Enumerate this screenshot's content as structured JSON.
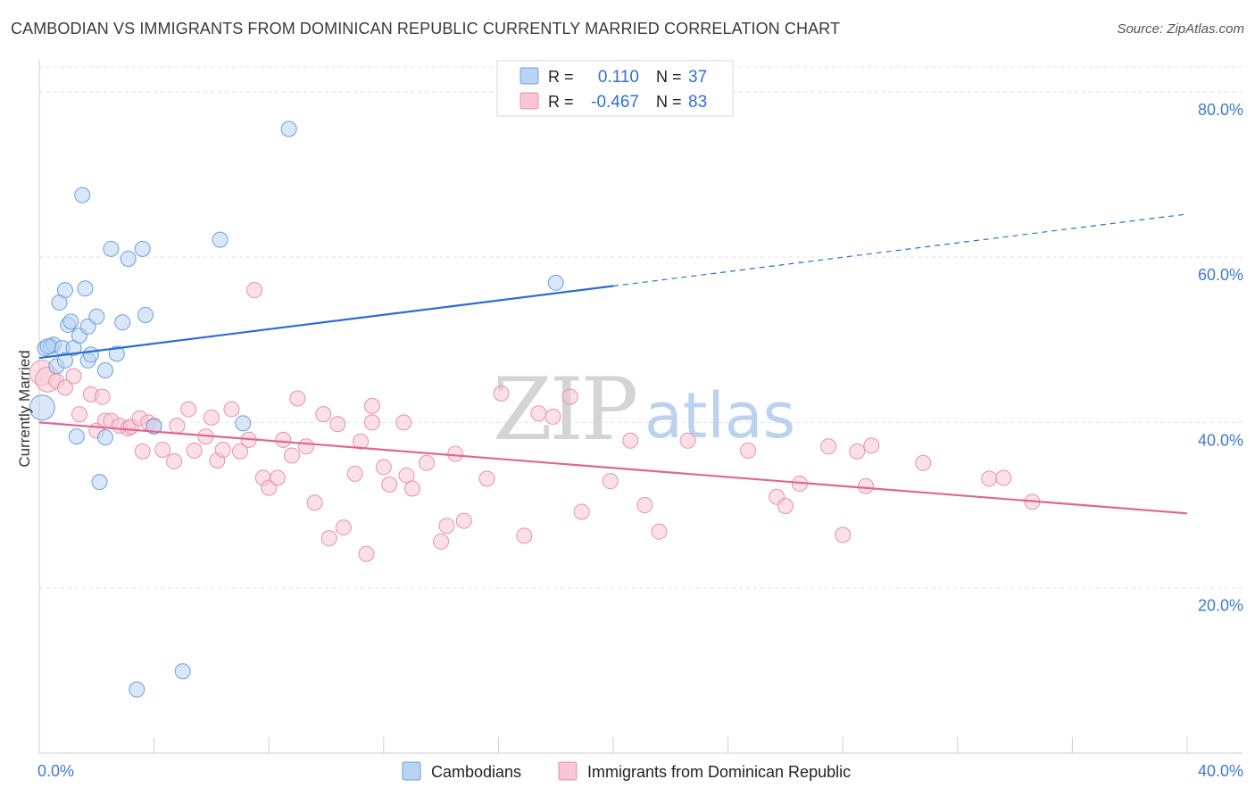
{
  "title": "CAMBODIAN VS IMMIGRANTS FROM DOMINICAN REPUBLIC CURRENTLY MARRIED CORRELATION CHART",
  "source": "Source: ZipAtlas.com",
  "watermark": {
    "zip": "ZIP",
    "atlas": "atlas"
  },
  "colors": {
    "blue_fill": "#b9d3f3",
    "blue_stroke": "#6b9fe0",
    "blue_line": "#2a6fcf",
    "pink_fill": "#f8c6d4",
    "pink_stroke": "#e990ad",
    "pink_line": "#e0668f",
    "grid": "#e3e3e3",
    "axis_text": "#3f7ad1"
  },
  "legend": {
    "rows": [
      {
        "r_label": "R =",
        "r_value": "0.110",
        "n_label": "N =",
        "n_value": "37"
      },
      {
        "r_label": "R =",
        "r_value": "-0.467",
        "n_label": "N =",
        "n_value": "83"
      }
    ]
  },
  "bottom_legend": [
    "Cambodians",
    "Immigrants from Dominican Republic"
  ],
  "chart_data": {
    "type": "scatter",
    "title": "CAMBODIAN VS IMMIGRANTS FROM DOMINICAN REPUBLIC CURRENTLY MARRIED CORRELATION CHART",
    "xlabel": "",
    "ylabel": "Currently Married",
    "xlim": [
      0,
      40
    ],
    "ylim": [
      0,
      83
    ],
    "x_tick_labels": [
      "0.0%",
      "40.0%"
    ],
    "y_ticks": [
      20,
      40,
      60,
      80
    ],
    "y_tick_labels": [
      "20.0%",
      "40.0%",
      "60.0%",
      "80.0%"
    ],
    "grid": true,
    "series": [
      {
        "name": "Cambodians",
        "r": 0.11,
        "n": 37,
        "trend": {
          "x0": 0,
          "y0": 47.8,
          "x1": 20,
          "y1": 56.5,
          "dash_to_x": 40,
          "dash_to_y": 65.2
        },
        "points": [
          [
            0.1,
            41.8,
            1
          ],
          [
            0.2,
            49.0,
            0
          ],
          [
            0.4,
            49.2,
            0
          ],
          [
            0.5,
            49.4,
            0
          ],
          [
            0.6,
            46.8,
            0
          ],
          [
            0.7,
            54.5,
            0
          ],
          [
            0.8,
            49.0,
            0
          ],
          [
            0.9,
            56.0,
            0
          ],
          [
            1.0,
            51.8,
            0
          ],
          [
            1.1,
            52.2,
            0
          ],
          [
            1.2,
            49.0,
            0
          ],
          [
            1.3,
            38.3,
            0
          ],
          [
            1.4,
            50.5,
            0
          ],
          [
            1.6,
            56.2,
            0
          ],
          [
            1.7,
            51.6,
            0
          ],
          [
            1.7,
            47.5,
            0
          ],
          [
            1.5,
            67.5,
            0
          ],
          [
            1.8,
            48.2,
            0
          ],
          [
            2.0,
            52.8,
            0
          ],
          [
            2.1,
            32.8,
            0
          ],
          [
            2.3,
            38.2,
            0
          ],
          [
            2.3,
            46.3,
            0
          ],
          [
            2.5,
            61.0,
            0
          ],
          [
            2.7,
            48.3,
            0
          ],
          [
            2.9,
            52.1,
            0
          ],
          [
            3.1,
            59.8,
            0
          ],
          [
            3.4,
            7.7,
            0
          ],
          [
            3.6,
            61.0,
            0
          ],
          [
            3.7,
            53.0,
            0
          ],
          [
            4.0,
            39.5,
            0
          ],
          [
            5.0,
            9.9,
            0
          ],
          [
            6.3,
            62.1,
            0
          ],
          [
            7.1,
            39.9,
            0
          ],
          [
            8.7,
            75.5,
            0
          ],
          [
            0.3,
            49.2,
            0
          ],
          [
            0.9,
            47.5,
            0
          ],
          [
            18.0,
            56.9,
            0
          ]
        ]
      },
      {
        "name": "Immigrants from Dominican Republic",
        "r": -0.467,
        "n": 83,
        "trend": {
          "x0": 0,
          "y0": 40.0,
          "x1": 40,
          "y1": 29.0
        },
        "points": [
          [
            0.1,
            46.0,
            1
          ],
          [
            0.3,
            45.2,
            1
          ],
          [
            0.6,
            45.0,
            0
          ],
          [
            0.9,
            44.2,
            0
          ],
          [
            1.2,
            45.6,
            0
          ],
          [
            1.4,
            41.0,
            0
          ],
          [
            1.8,
            43.4,
            0
          ],
          [
            2.0,
            39.0,
            0
          ],
          [
            2.2,
            43.1,
            0
          ],
          [
            2.3,
            40.2,
            0
          ],
          [
            2.5,
            40.2,
            0
          ],
          [
            2.8,
            39.6,
            0
          ],
          [
            3.1,
            39.3,
            0
          ],
          [
            3.2,
            39.5,
            0
          ],
          [
            3.5,
            40.5,
            0
          ],
          [
            3.6,
            36.5,
            0
          ],
          [
            3.8,
            40.0,
            0
          ],
          [
            4.0,
            39.6,
            0
          ],
          [
            4.3,
            36.7,
            0
          ],
          [
            4.7,
            35.3,
            0
          ],
          [
            4.8,
            39.6,
            0
          ],
          [
            5.2,
            41.6,
            0
          ],
          [
            5.4,
            36.6,
            0
          ],
          [
            5.8,
            38.3,
            0
          ],
          [
            6.0,
            40.6,
            0
          ],
          [
            6.2,
            35.4,
            0
          ],
          [
            6.4,
            36.7,
            0
          ],
          [
            6.7,
            41.6,
            0
          ],
          [
            7.0,
            36.5,
            0
          ],
          [
            7.3,
            37.9,
            0
          ],
          [
            7.5,
            56.0,
            0
          ],
          [
            7.8,
            33.3,
            0
          ],
          [
            8.0,
            32.1,
            0
          ],
          [
            8.3,
            33.3,
            0
          ],
          [
            8.5,
            37.9,
            0
          ],
          [
            8.8,
            36.0,
            0
          ],
          [
            9.0,
            42.9,
            0
          ],
          [
            9.3,
            37.1,
            0
          ],
          [
            9.6,
            30.3,
            0
          ],
          [
            9.9,
            41.0,
            0
          ],
          [
            10.1,
            26.0,
            0
          ],
          [
            10.4,
            39.8,
            0
          ],
          [
            10.6,
            27.3,
            0
          ],
          [
            11.0,
            33.8,
            0
          ],
          [
            11.2,
            37.7,
            0
          ],
          [
            11.4,
            24.1,
            0
          ],
          [
            11.6,
            42.0,
            0
          ],
          [
            11.6,
            40.0,
            0
          ],
          [
            12.0,
            34.6,
            0
          ],
          [
            12.2,
            32.5,
            0
          ],
          [
            12.7,
            40.0,
            0
          ],
          [
            12.8,
            33.6,
            0
          ],
          [
            13.0,
            32.0,
            0
          ],
          [
            13.5,
            35.1,
            0
          ],
          [
            14.0,
            25.6,
            0
          ],
          [
            14.2,
            27.5,
            0
          ],
          [
            14.5,
            36.2,
            0
          ],
          [
            14.8,
            28.1,
            0
          ],
          [
            15.6,
            33.2,
            0
          ],
          [
            16.1,
            43.5,
            0
          ],
          [
            16.9,
            26.3,
            0
          ],
          [
            17.4,
            41.1,
            0
          ],
          [
            17.9,
            40.7,
            0
          ],
          [
            18.5,
            43.1,
            0
          ],
          [
            18.9,
            29.2,
            0
          ],
          [
            19.9,
            32.9,
            0
          ],
          [
            20.6,
            37.8,
            0
          ],
          [
            21.1,
            30.0,
            0
          ],
          [
            21.6,
            26.8,
            0
          ],
          [
            22.6,
            37.8,
            0
          ],
          [
            24.7,
            36.6,
            0
          ],
          [
            25.7,
            31.0,
            0
          ],
          [
            26.0,
            29.9,
            0
          ],
          [
            26.5,
            32.6,
            0
          ],
          [
            27.5,
            37.1,
            0
          ],
          [
            28.0,
            26.4,
            0
          ],
          [
            28.5,
            36.5,
            0
          ],
          [
            28.8,
            32.3,
            0
          ],
          [
            29.0,
            37.2,
            0
          ],
          [
            30.8,
            35.1,
            0
          ],
          [
            33.1,
            33.2,
            0
          ],
          [
            33.6,
            33.3,
            0
          ],
          [
            34.6,
            30.4,
            0
          ]
        ]
      }
    ]
  }
}
